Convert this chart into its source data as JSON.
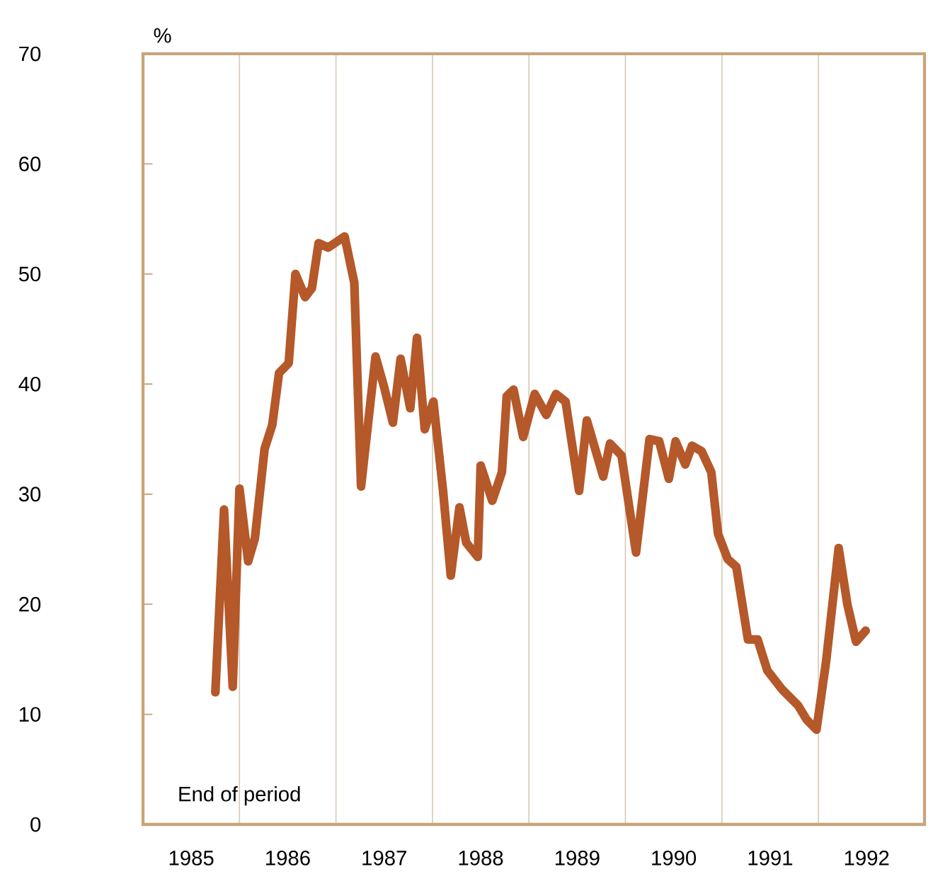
{
  "chart_data": {
    "type": "line",
    "ylabel": "%",
    "annotations": [
      "End of period"
    ],
    "x": [
      1985.75,
      1985.84,
      1985.93,
      1986.0,
      1986.09,
      1986.16,
      1986.26,
      1986.34,
      1986.41,
      1986.51,
      1986.58,
      1986.68,
      1986.75,
      1986.82,
      1986.92,
      1987.02,
      1987.09,
      1987.19,
      1987.26,
      1987.41,
      1987.5,
      1987.59,
      1987.67,
      1987.77,
      1987.84,
      1987.92,
      1988.01,
      1988.11,
      1988.19,
      1988.28,
      1988.35,
      1988.47,
      1988.5,
      1988.62,
      1988.72,
      1988.77,
      1988.84,
      1988.94,
      1989.06,
      1989.18,
      1989.28,
      1989.38,
      1989.52,
      1989.6,
      1989.77,
      1989.84,
      1989.96,
      1990.11,
      1990.25,
      1990.35,
      1990.45,
      1990.52,
      1990.62,
      1990.69,
      1990.79,
      1990.89,
      1990.96,
      1991.06,
      1991.15,
      1991.27,
      1991.37,
      1991.47,
      1991.62,
      1991.79,
      1991.88,
      1991.98,
      1992.08,
      1992.21,
      1992.3,
      1992.39,
      1992.49
    ],
    "series": [
      {
        "color": "#b5582a",
        "values": [
          12.0,
          28.6,
          12.5,
          30.5,
          23.9,
          26.0,
          34.1,
          36.3,
          41.0,
          41.9,
          50.0,
          47.9,
          48.7,
          52.8,
          52.4,
          53.0,
          53.4,
          49.2,
          30.7,
          42.5,
          39.7,
          36.5,
          42.3,
          37.8,
          44.2,
          35.9,
          38.4,
          30.3,
          22.6,
          28.8,
          25.6,
          24.3,
          32.6,
          29.4,
          32.0,
          38.9,
          39.5,
          35.2,
          39.1,
          37.2,
          39.1,
          38.4,
          30.3,
          36.7,
          31.6,
          34.6,
          33.5,
          24.7,
          35.0,
          34.8,
          31.4,
          34.8,
          32.7,
          34.4,
          33.9,
          32.0,
          26.4,
          24.1,
          23.4,
          16.8,
          16.8,
          14.0,
          12.3,
          10.8,
          9.5,
          8.6,
          14.8,
          25.1,
          20.0,
          16.6,
          17.6
        ]
      }
    ],
    "xlim": [
      1985,
      1993.1
    ],
    "xticks": [
      {
        "value": 1985,
        "label": null
      },
      {
        "value": 1985.5,
        "label": "1985"
      },
      {
        "value": 1986,
        "label": null
      },
      {
        "value": 1986.5,
        "label": "1986"
      },
      {
        "value": 1987,
        "label": null
      },
      {
        "value": 1987.5,
        "label": "1987"
      },
      {
        "value": 1988,
        "label": null
      },
      {
        "value": 1988.5,
        "label": "1988"
      },
      {
        "value": 1989,
        "label": null
      },
      {
        "value": 1989.5,
        "label": "1989"
      },
      {
        "value": 1990,
        "label": null
      },
      {
        "value": 1990.5,
        "label": "1990"
      },
      {
        "value": 1991,
        "label": null
      },
      {
        "value": 1991.5,
        "label": "1991"
      },
      {
        "value": 1992,
        "label": null
      },
      {
        "value": 1992.5,
        "label": "1992"
      }
    ],
    "ylim": [
      0,
      70
    ],
    "yticks": [
      0,
      10,
      20,
      30,
      40,
      50,
      60,
      70
    ],
    "grid": "x",
    "marker": "none",
    "line_style": "solid"
  }
}
